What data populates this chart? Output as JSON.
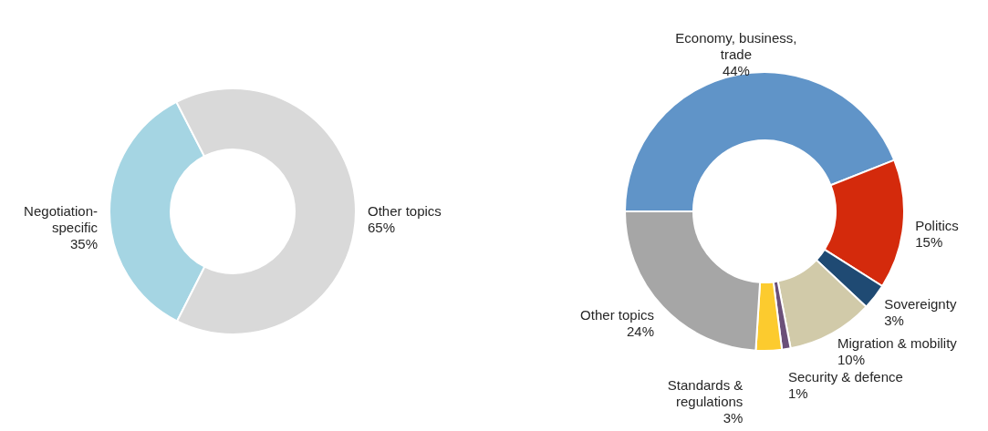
{
  "chart_data": [
    {
      "type": "donut",
      "categories": [
        "Negotiation-specific",
        "Other topics"
      ],
      "values": [
        35,
        65
      ],
      "colors": [
        "#a5d5e3",
        "#d9d9d9"
      ],
      "value_labels": [
        "35%",
        "65%"
      ]
    },
    {
      "type": "donut",
      "categories": [
        "Economy, business, trade",
        "Politics",
        "Sovereignty",
        "Migration & mobility",
        "Security & defence",
        "Standards & regulations",
        "Other topics"
      ],
      "values": [
        44,
        15,
        3,
        10,
        1,
        3,
        24
      ],
      "colors": [
        "#6094c8",
        "#d42a0c",
        "#1f4a73",
        "#d1caa9",
        "#6b5079",
        "#fccb2e",
        "#a6a6a6"
      ],
      "value_labels": [
        "44%",
        "15%",
        "3%",
        "10%",
        "1%",
        "3%",
        "24%"
      ]
    }
  ]
}
